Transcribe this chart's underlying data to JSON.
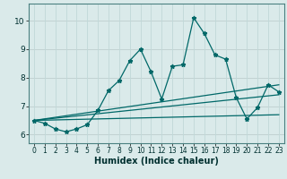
{
  "title": "",
  "xlabel": "Humidex (Indice chaleur)",
  "background_color": "#daeaea",
  "grid_color": "#c0d8d8",
  "line_color": "#006868",
  "xlim": [
    -0.5,
    23.5
  ],
  "ylim": [
    5.7,
    10.6
  ],
  "yticks": [
    6,
    7,
    8,
    9,
    10
  ],
  "xticks": [
    0,
    1,
    2,
    3,
    4,
    5,
    6,
    7,
    8,
    9,
    10,
    11,
    12,
    13,
    14,
    15,
    16,
    17,
    18,
    19,
    20,
    21,
    22,
    23
  ],
  "main_line_x": [
    0,
    1,
    2,
    3,
    4,
    5,
    6,
    7,
    8,
    9,
    10,
    11,
    12,
    13,
    14,
    15,
    16,
    17,
    18,
    19,
    20,
    21,
    22,
    23
  ],
  "main_line_y": [
    6.5,
    6.4,
    6.2,
    6.1,
    6.2,
    6.35,
    6.85,
    7.55,
    7.9,
    8.6,
    9.0,
    8.2,
    7.25,
    8.4,
    8.45,
    10.1,
    9.55,
    8.8,
    8.65,
    7.3,
    6.55,
    6.95,
    7.75,
    7.5
  ],
  "line2_x": [
    0,
    23
  ],
  "line2_y": [
    6.5,
    7.75
  ],
  "line3_x": [
    0,
    23
  ],
  "line3_y": [
    6.5,
    7.4
  ],
  "line4_x": [
    0,
    23
  ],
  "line4_y": [
    6.5,
    6.7
  ],
  "xlabel_fontsize": 7,
  "tick_fontsize": 6.5,
  "xtick_fontsize": 5.5
}
